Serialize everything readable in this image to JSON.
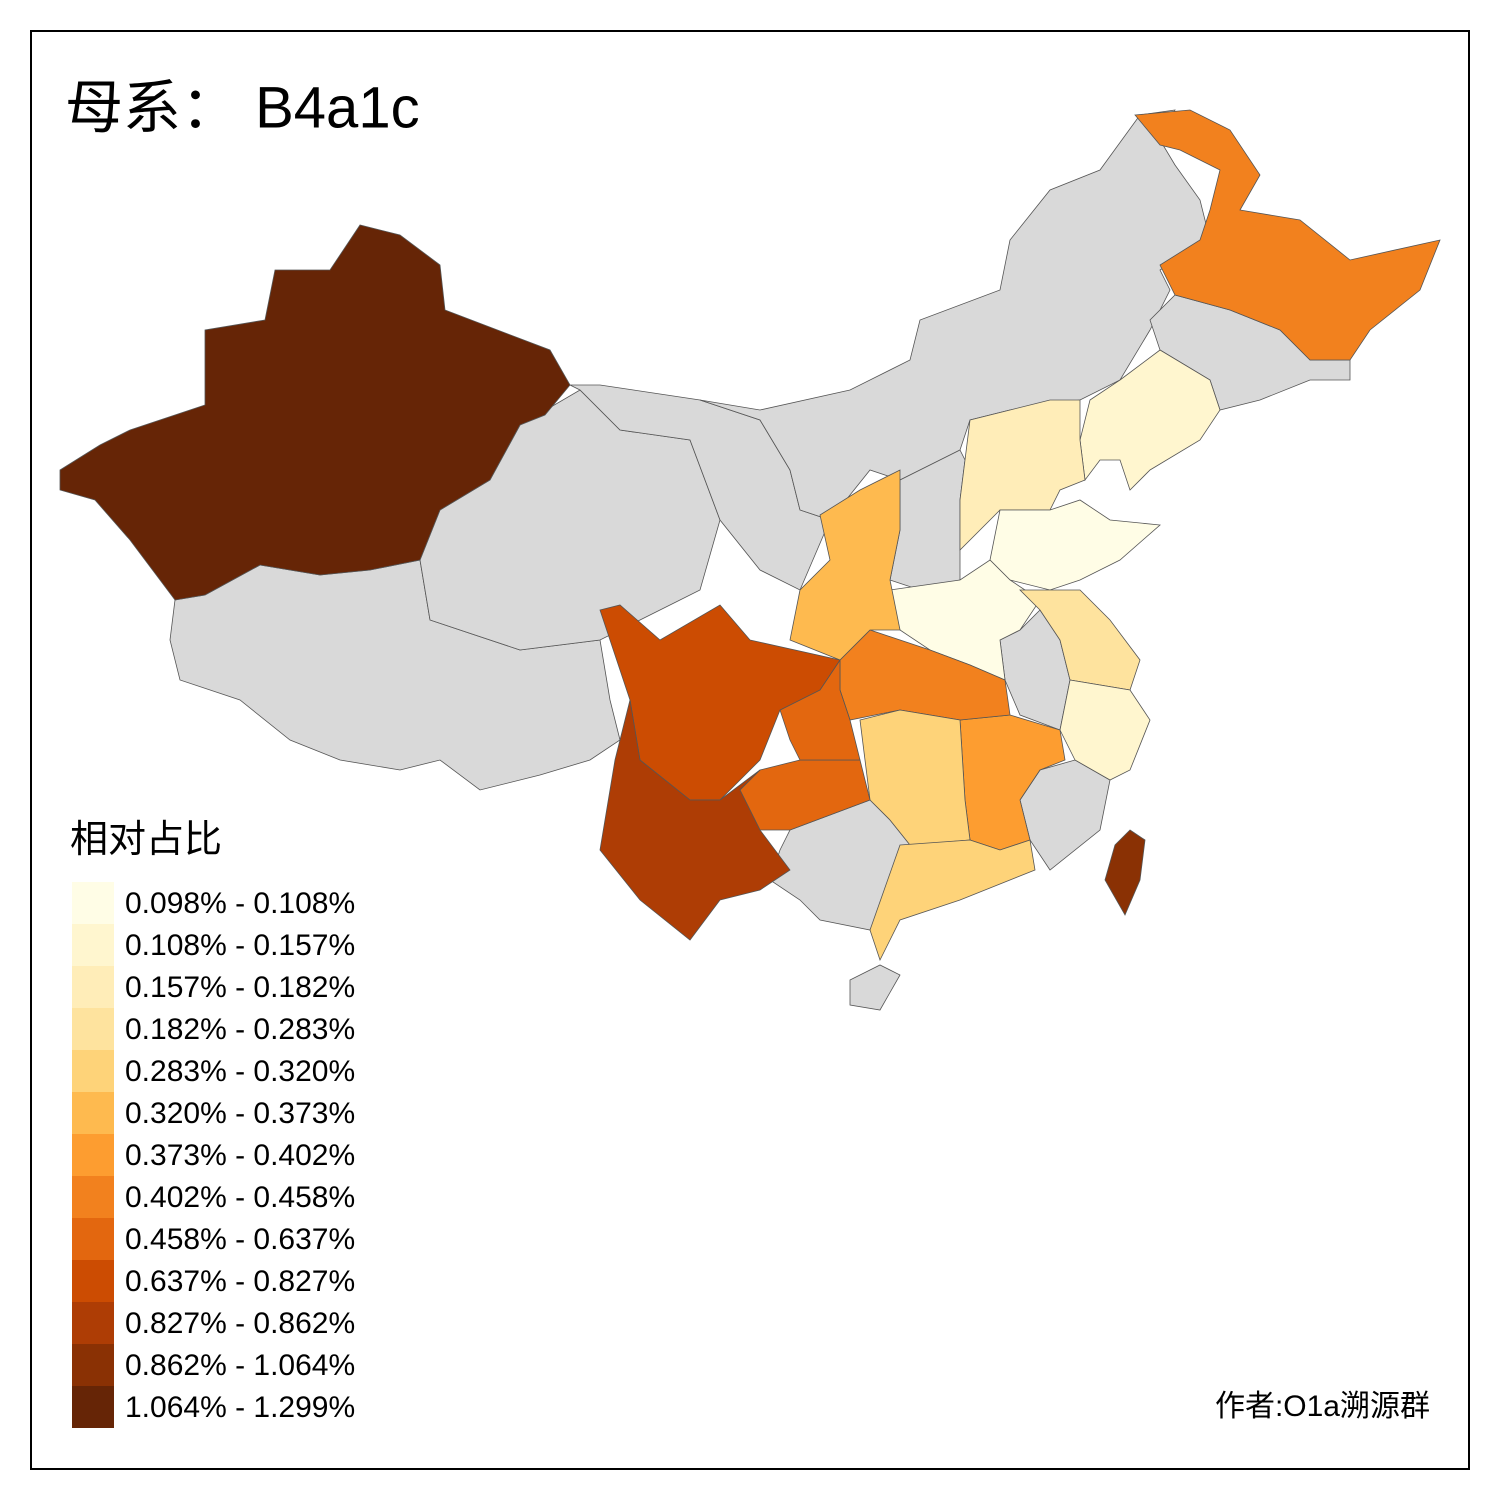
{
  "title": "母系： B4a1c",
  "legend": {
    "title": "相对占比",
    "items": [
      {
        "label": "0.098% - 0.108%",
        "color": "#fffde6"
      },
      {
        "label": "0.108% - 0.157%",
        "color": "#fff6cf"
      },
      {
        "label": "0.157% - 0.182%",
        "color": "#ffedb8"
      },
      {
        "label": "0.182% - 0.283%",
        "color": "#fee39e"
      },
      {
        "label": "0.283% - 0.320%",
        "color": "#fed379"
      },
      {
        "label": "0.320% - 0.373%",
        "color": "#feba4f"
      },
      {
        "label": "0.373% - 0.402%",
        "color": "#fd9d30"
      },
      {
        "label": "0.402% - 0.458%",
        "color": "#f2811e"
      },
      {
        "label": "0.458% - 0.637%",
        "color": "#e3670f"
      },
      {
        "label": "0.637% - 0.827%",
        "color": "#cc4c02"
      },
      {
        "label": "0.827% - 0.862%",
        "color": "#ae3d05"
      },
      {
        "label": "0.862% - 1.064%",
        "color": "#8a3104"
      },
      {
        "label": "1.064% - 1.299%",
        "color": "#662506"
      }
    ]
  },
  "credit": "作者:O1a溯源群"
}
